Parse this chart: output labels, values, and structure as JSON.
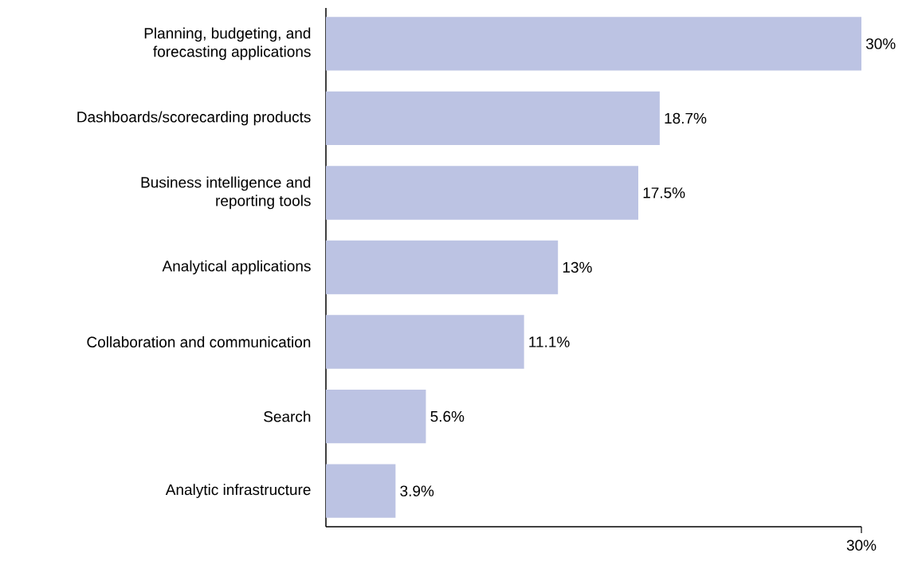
{
  "chart_data": {
    "type": "bar",
    "orientation": "horizontal",
    "categories": [
      "Planning, budgeting, and forecasting applications",
      "Dashboards/scorecarding products",
      "Business intelligence and reporting tools",
      "Analytical applications",
      "Collaboration and communication",
      "Search",
      "Analytic infrastructure"
    ],
    "values": [
      30,
      18.7,
      17.5,
      13,
      11.1,
      5.6,
      3.9
    ],
    "value_labels": [
      "30%",
      "18.7%",
      "17.5%",
      "13%",
      "11.1%",
      "5.6%",
      "3.9%"
    ],
    "color": "#bcc3e3",
    "xlim": [
      0,
      30
    ],
    "xticks": [
      {
        "value": 30,
        "label": "30%"
      }
    ],
    "grid": false
  }
}
